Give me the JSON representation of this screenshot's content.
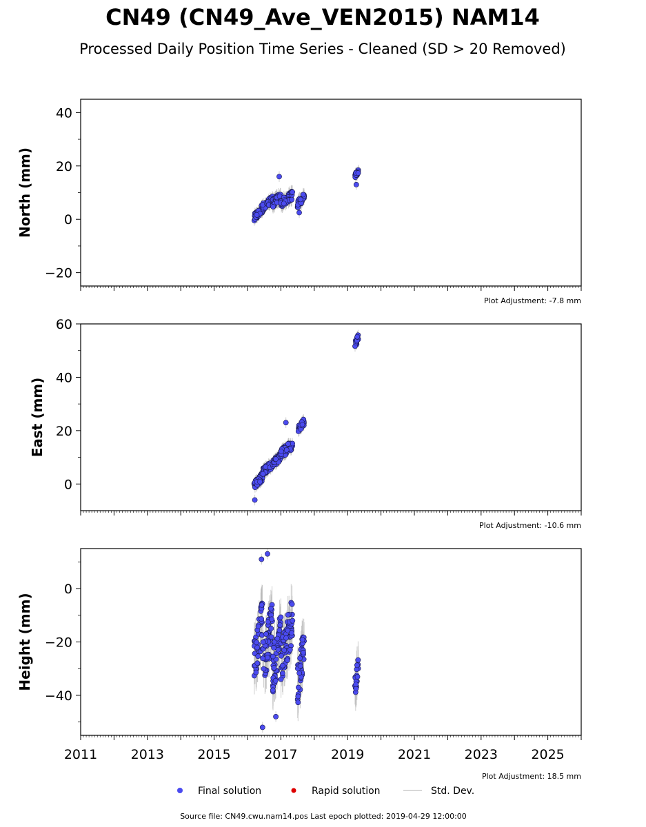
{
  "title": "CN49 (CN49_Ave_VEN2015) NAM14",
  "subtitle": "Processed Daily Position Time Series - Cleaned (SD > 20 Removed)",
  "legend": {
    "final": "Final solution",
    "rapid": "Rapid solution",
    "std": "Std. Dev."
  },
  "footer": "Source file: CN49.cwu.nam14.pos  Last epoch plotted: 2019-04-29 12:00:00",
  "colors": {
    "final": "#4b4bf0",
    "rapid": "#dd0000",
    "std": "#bbbbbb"
  },
  "chart_data": [
    {
      "type": "scatter",
      "ylabel": "North (mm)",
      "adjustment": "Plot Adjustment: -7.8 mm",
      "xlim": [
        2011,
        2026
      ],
      "ylim": [
        -25,
        45
      ],
      "yticks": [
        -20,
        0,
        20,
        40
      ],
      "yticklabels": [
        "−20",
        "0",
        "20",
        "40"
      ],
      "xticks": [
        2011,
        2013,
        2015,
        2017,
        2019,
        2021,
        2023,
        2025
      ],
      "clusters": [
        {
          "x": [
            2016.2,
            2016.45
          ],
          "y": [
            -2,
            7
          ],
          "sd": 2
        },
        {
          "x": [
            2016.45,
            2016.75
          ],
          "y": [
            2,
            10
          ],
          "sd": 2
        },
        {
          "x": [
            2016.75,
            2017.0
          ],
          "y": [
            3,
            12
          ],
          "sd": 2.5
        },
        {
          "x": [
            2017.0,
            2017.35
          ],
          "y": [
            3,
            12
          ],
          "sd": 2.5
        },
        {
          "x": [
            2017.5,
            2017.7
          ],
          "y": [
            3,
            11
          ],
          "sd": 2.5
        },
        {
          "x": [
            2019.22,
            2019.32
          ],
          "y": [
            14,
            20
          ],
          "sd": 2
        }
      ],
      "outliers": [
        {
          "x": 2016.95,
          "y": 16
        },
        {
          "x": 2017.55,
          "y": 2.5
        },
        {
          "x": 2019.26,
          "y": 13
        }
      ]
    },
    {
      "type": "scatter",
      "ylabel": "East (mm)",
      "adjustment": "Plot Adjustment: -10.6 mm",
      "xlim": [
        2011,
        2026
      ],
      "ylim": [
        -10,
        60
      ],
      "yticks": [
        0,
        20,
        40,
        60
      ],
      "yticklabels": [
        "0",
        "20",
        "40",
        "60"
      ],
      "xticks": [
        2011,
        2013,
        2015,
        2017,
        2019,
        2021,
        2023,
        2025
      ],
      "clusters": [
        {
          "x": [
            2016.2,
            2016.45
          ],
          "y": [
            -4,
            6
          ],
          "sd": 2
        },
        {
          "x": [
            2016.45,
            2016.75
          ],
          "y": [
            2,
            10
          ],
          "sd": 2
        },
        {
          "x": [
            2016.75,
            2017.0
          ],
          "y": [
            5,
            13
          ],
          "sd": 2
        },
        {
          "x": [
            2017.0,
            2017.35
          ],
          "y": [
            8,
            18
          ],
          "sd": 2
        },
        {
          "x": [
            2017.5,
            2017.7
          ],
          "y": [
            18,
            26
          ],
          "sd": 2
        },
        {
          "x": [
            2019.22,
            2019.32
          ],
          "y": [
            50,
            57
          ],
          "sd": 2
        }
      ],
      "outliers": [
        {
          "x": 2016.22,
          "y": -6
        },
        {
          "x": 2017.15,
          "y": 23
        }
      ]
    },
    {
      "type": "scatter",
      "ylabel": "Height (mm)",
      "adjustment": "Plot Adjustment: 18.5 mm",
      "xlim": [
        2011,
        2026
      ],
      "ylim": [
        -55,
        15
      ],
      "yticks": [
        -40,
        -20,
        0
      ],
      "yticklabels": [
        "−40",
        "−20",
        "0"
      ],
      "xticks": [
        2011,
        2013,
        2015,
        2017,
        2019,
        2021,
        2023,
        2025
      ],
      "xticklabels": [
        "2011",
        "2013",
        "2015",
        "2017",
        "2019",
        "2021",
        "2023",
        "2025"
      ],
      "clusters": [
        {
          "x": [
            2016.2,
            2016.45
          ],
          "y": [
            -42,
            3
          ],
          "sd": 7
        },
        {
          "x": [
            2016.45,
            2016.75
          ],
          "y": [
            -45,
            3
          ],
          "sd": 7
        },
        {
          "x": [
            2016.75,
            2017.0
          ],
          "y": [
            -48,
            0
          ],
          "sd": 7
        },
        {
          "x": [
            2017.0,
            2017.35
          ],
          "y": [
            -44,
            5
          ],
          "sd": 7
        },
        {
          "x": [
            2017.5,
            2017.7
          ],
          "y": [
            -50,
            -8
          ],
          "sd": 7
        },
        {
          "x": [
            2019.22,
            2019.32
          ],
          "y": [
            -45,
            -22
          ],
          "sd": 7
        }
      ],
      "outliers": [
        {
          "x": 2016.42,
          "y": 11
        },
        {
          "x": 2016.6,
          "y": 13
        },
        {
          "x": 2016.45,
          "y": -52
        },
        {
          "x": 2016.85,
          "y": -48
        }
      ]
    }
  ]
}
